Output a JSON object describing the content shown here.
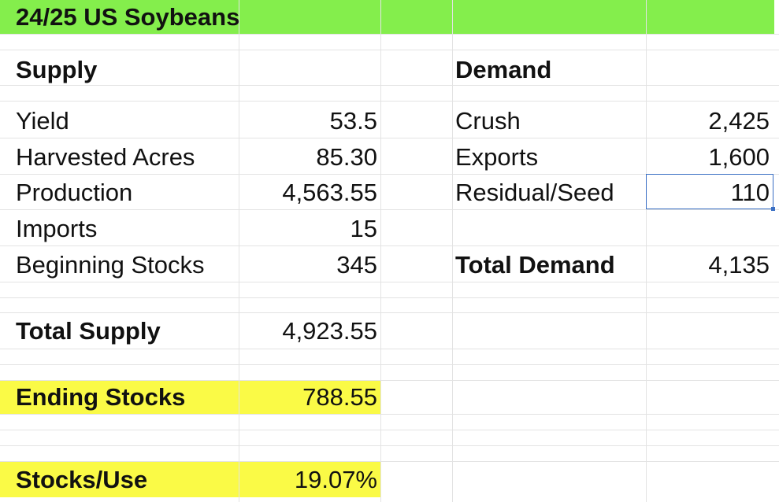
{
  "title": "24/25 US Soybeans",
  "supply": {
    "header": "Supply",
    "rows": [
      {
        "label": "Yield",
        "value": "53.5"
      },
      {
        "label": "Harvested Acres",
        "value": "85.30"
      },
      {
        "label": "Production",
        "value": "4,563.55"
      },
      {
        "label": "Imports",
        "value": "15"
      },
      {
        "label": "Beginning Stocks",
        "value": "345"
      }
    ],
    "total_label": "Total Supply",
    "total_value": "4,923.55"
  },
  "demand": {
    "header": "Demand",
    "rows": [
      {
        "label": "Crush",
        "value": "2,425"
      },
      {
        "label": "Exports",
        "value": "1,600"
      },
      {
        "label": "Residual/Seed",
        "value": "110"
      }
    ],
    "total_label": "Total Demand",
    "total_value": "4,135"
  },
  "ending_stocks": {
    "label": "Ending Stocks",
    "value": "788.55"
  },
  "stocks_use": {
    "label": "Stocks/Use",
    "value": "19.07%"
  },
  "colors": {
    "title_fill": "#84ee4c",
    "highlight_fill": "#fafa46",
    "gridline": "#e3e3e3",
    "selection": "#3a6fc4"
  }
}
